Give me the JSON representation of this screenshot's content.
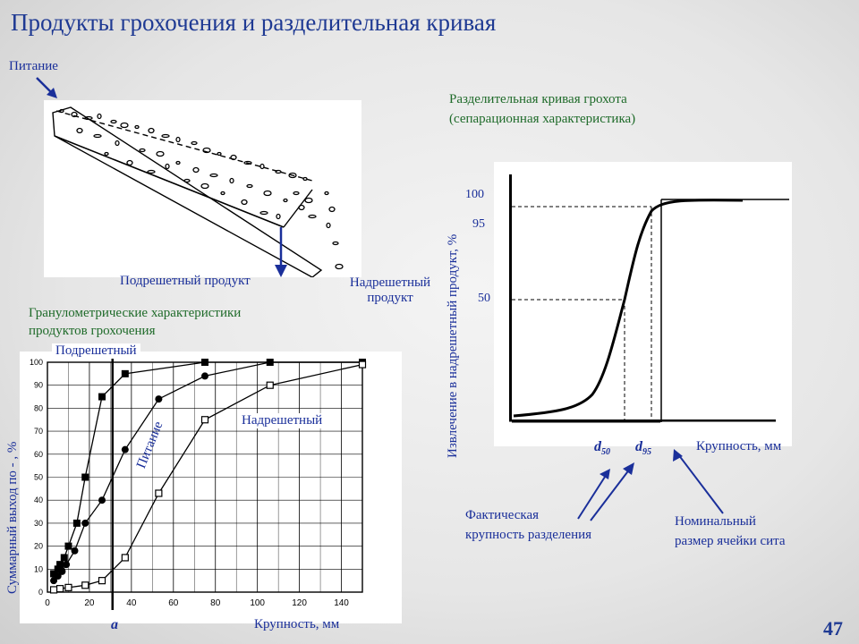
{
  "slide": {
    "title": "Продукты грохочения и разделительная кривая",
    "page_number": "47"
  },
  "screen": {
    "feed_label": "Питание",
    "undersize_label": "Подрешетный продукт",
    "oversize_label_line1": "Надрешетный",
    "oversize_label_line2": "продукт"
  },
  "granulometry": {
    "heading_line1": "Гранулометрические характеристики",
    "heading_line2": "продуктов грохочения",
    "ylabel": "Суммарный выход по - , %",
    "xlabel": "Крупность, мм",
    "marker_a": "a",
    "legend_undersize": "Подрешетный",
    "legend_feed": "Питание",
    "legend_oversize": "Надрешетный"
  },
  "separation": {
    "heading_line1": "Разделительная кривая грохота",
    "heading_line2": "(сепарационная характеристика)",
    "ylabel": "Извлечение в надрешетный продукт, %",
    "xlabel": "Крупность, мм",
    "tick_100": "100",
    "tick_95": "95",
    "tick_50": "50",
    "d50_label": "d",
    "d50_sub": "50",
    "d95_label": "d",
    "d95_sub": "95",
    "actual_size_line1": "Фактическая",
    "actual_size_line2": "крупность разделения",
    "nominal_size_line1": "Номинальный",
    "nominal_size_line2": "размер ячейки сита"
  },
  "chart_data": {
    "type": "line",
    "xlim": [
      0,
      150
    ],
    "ylim": [
      0,
      100
    ],
    "x_ticks": [
      0,
      20,
      40,
      60,
      80,
      100,
      120,
      140
    ],
    "y_ticks": [
      0,
      10,
      20,
      30,
      40,
      50,
      60,
      70,
      80,
      90,
      100
    ],
    "grid": true,
    "series": [
      {
        "name": "Подрешетный",
        "marker": "filled-square",
        "x": [
          3,
          5,
          6,
          8,
          10,
          14,
          18,
          26,
          37,
          75,
          106,
          150
        ],
        "y": [
          8,
          10,
          12,
          15,
          20,
          30,
          50,
          85,
          95,
          100,
          100,
          100
        ]
      },
      {
        "name": "Питание",
        "marker": "filled-circle",
        "x": [
          3,
          5,
          7,
          9,
          13,
          18,
          26,
          37,
          53,
          75,
          106,
          150
        ],
        "y": [
          5,
          7,
          9,
          12,
          18,
          30,
          40,
          62,
          84,
          94,
          100,
          100
        ]
      },
      {
        "name": "Надрешетный",
        "marker": "open-square",
        "x": [
          3,
          6,
          10,
          18,
          26,
          37,
          53,
          75,
          106,
          150
        ],
        "y": [
          1,
          1.5,
          2,
          3,
          5,
          15,
          43,
          75,
          90,
          99
        ]
      }
    ],
    "cut_size_a": 31
  }
}
